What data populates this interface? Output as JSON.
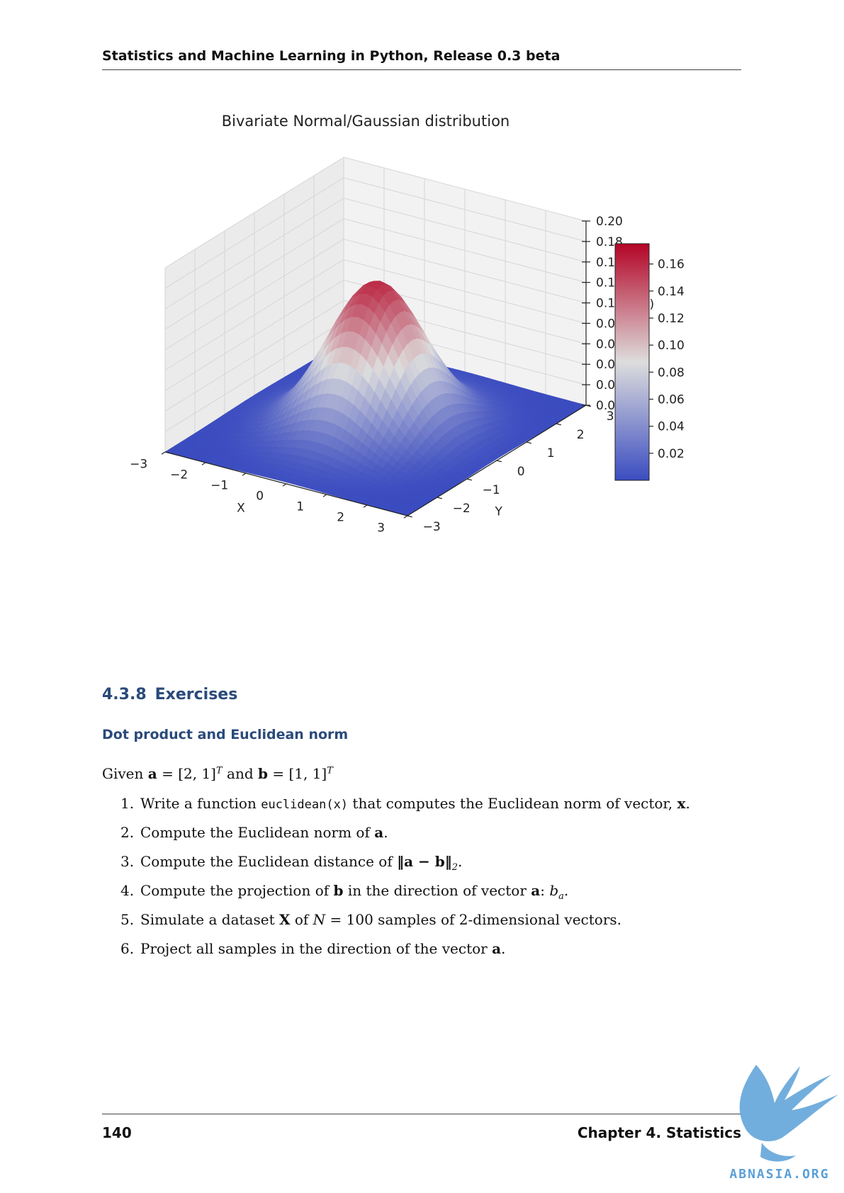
{
  "header": {
    "running_title": "Statistics and Machine Learning in Python, Release 0.3 beta"
  },
  "chart_data": {
    "type": "surface3d",
    "title": "Bivariate Normal/Gaussian distribution",
    "xlabel": "X",
    "ylabel": "Y",
    "zlabel": "p(x)",
    "x_ticks": [
      "−3",
      "−2",
      "−1",
      "0",
      "1",
      "2",
      "3"
    ],
    "y_ticks": [
      "−3",
      "−2",
      "−1",
      "0",
      "1",
      "2",
      "3"
    ],
    "z_ticks": [
      "0.00",
      "0.02",
      "0.04",
      "0.07",
      "0.09",
      "0.11",
      "0.13",
      "0.16",
      "0.18",
      "0.20"
    ],
    "xlim": [
      -3,
      3
    ],
    "ylim": [
      -3,
      3
    ],
    "zlim": [
      0,
      0.2
    ],
    "peak": 0.159,
    "colormap": "coolwarm",
    "colorbar_ticks": [
      "0.02",
      "0.04",
      "0.06",
      "0.08",
      "0.10",
      "0.12",
      "0.14",
      "0.16"
    ],
    "colorbar_range": [
      0,
      0.175
    ],
    "colors": {
      "low": "#3b4cc0",
      "mid": "#dddddd",
      "high": "#b40426"
    }
  },
  "section": {
    "number": "4.3.8",
    "title": "Exercises"
  },
  "subsection": {
    "title": "Dot product and Euclidean norm"
  },
  "intro": {
    "given": "Given",
    "a": "a",
    "a_value": "[2, 1]",
    "and": "and",
    "b": "b",
    "b_value": "[1, 1]",
    "transpose": "T"
  },
  "exercises": [
    {
      "number": "1.",
      "parts": [
        "Write a function ",
        "euclidean(x)",
        " that computes the Euclidean norm of vector, ",
        "x",
        "."
      ]
    },
    {
      "number": "2.",
      "parts": [
        "Compute the Euclidean norm of ",
        "a",
        "."
      ]
    },
    {
      "number": "3.",
      "parts": [
        "Compute the Euclidean distance of ",
        "‖a − b‖",
        "2",
        "."
      ]
    },
    {
      "number": "4.",
      "parts": [
        "Compute the projection of ",
        "b",
        " in the direction of vector ",
        "a",
        ": ",
        "b",
        "a",
        "."
      ]
    },
    {
      "number": "5.",
      "parts": [
        "Simulate a dataset ",
        "X",
        " of ",
        "N",
        " = 100",
        " samples of 2-dimensional vectors."
      ]
    },
    {
      "number": "6.",
      "parts": [
        "Project all samples in the direction of the vector ",
        "a",
        "."
      ]
    }
  ],
  "footer": {
    "page_number": "140",
    "chapter": "Chapter 4.  Statistics"
  },
  "watermark": {
    "text": "ABNASIA.ORG",
    "color": "#5aa0d8"
  }
}
